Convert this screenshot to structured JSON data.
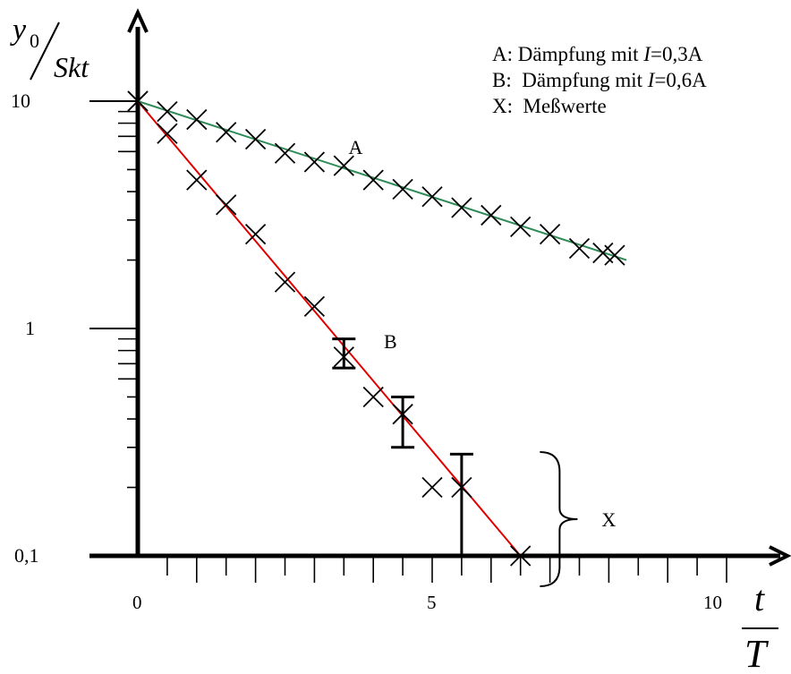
{
  "chart_data": {
    "type": "scatter",
    "y_scale": "log",
    "xlim": [
      0,
      10
    ],
    "ylim": [
      0.1,
      10
    ],
    "x_ticks": [
      0,
      5,
      10
    ],
    "y_ticks": [
      0.1,
      1,
      10
    ],
    "x_tick_labels": [
      "0",
      "5",
      "10"
    ],
    "y_tick_labels": [
      "0,1",
      "1",
      "10"
    ],
    "ylabel": {
      "num": "y",
      "sub": "0",
      "den": "Skt"
    },
    "xlabel": {
      "num": "t",
      "den": "T"
    },
    "grid": false,
    "legend_position": "top-right",
    "legend": [
      {
        "key": "A:",
        "text_pre": "Dämpfung mit ",
        "var": "I",
        "text_post": "=0,3A"
      },
      {
        "key": "B:",
        "text_pre": "Dämpfung mit ",
        "var": "I",
        "text_post": "=0,6A"
      },
      {
        "key": "X:",
        "text_pre": "Meßwerte",
        "var": "",
        "text_post": ""
      }
    ],
    "series": [
      {
        "name": "A",
        "color": "#2e8b57",
        "fit": [
          [
            0,
            10
          ],
          [
            8.3,
            2.0
          ]
        ],
        "x": [
          0,
          0.5,
          1.0,
          1.5,
          2.0,
          2.5,
          3.0,
          3.5,
          4.0,
          4.5,
          5.0,
          5.5,
          6.0,
          6.5,
          7.0,
          7.5,
          7.9,
          8.1
        ],
        "y": [
          10,
          9.0,
          8.3,
          7.3,
          6.8,
          5.9,
          5.4,
          5.2,
          4.5,
          4.1,
          3.8,
          3.4,
          3.15,
          2.8,
          2.6,
          2.25,
          2.15,
          2.1
        ]
      },
      {
        "name": "B",
        "color": "#e00000",
        "fit": [
          [
            0,
            10
          ],
          [
            6.5,
            0.1
          ]
        ],
        "x": [
          0,
          0.5,
          1.0,
          1.5,
          2.0,
          2.5,
          3.0,
          3.5,
          4.0,
          4.5,
          5.0,
          5.5,
          6.5
        ],
        "y": [
          10,
          7.2,
          4.5,
          3.5,
          2.6,
          1.6,
          1.25,
          0.75,
          0.5,
          0.42,
          0.2,
          0.2,
          0.1
        ],
        "error_bars": [
          {
            "x": 3.5,
            "low": 0.67,
            "high": 0.9
          },
          {
            "x": 4.5,
            "low": 0.3,
            "high": 0.5
          },
          {
            "x": 5.5,
            "low": 0.1,
            "high": 0.28
          }
        ]
      }
    ],
    "annotations": [
      {
        "text": "A",
        "x": 3.7,
        "y": 6.3
      },
      {
        "text": "B",
        "x": 4.3,
        "y": 0.88
      },
      {
        "text": "X",
        "x": 8.0,
        "y": 0.145,
        "brace": true
      }
    ]
  }
}
